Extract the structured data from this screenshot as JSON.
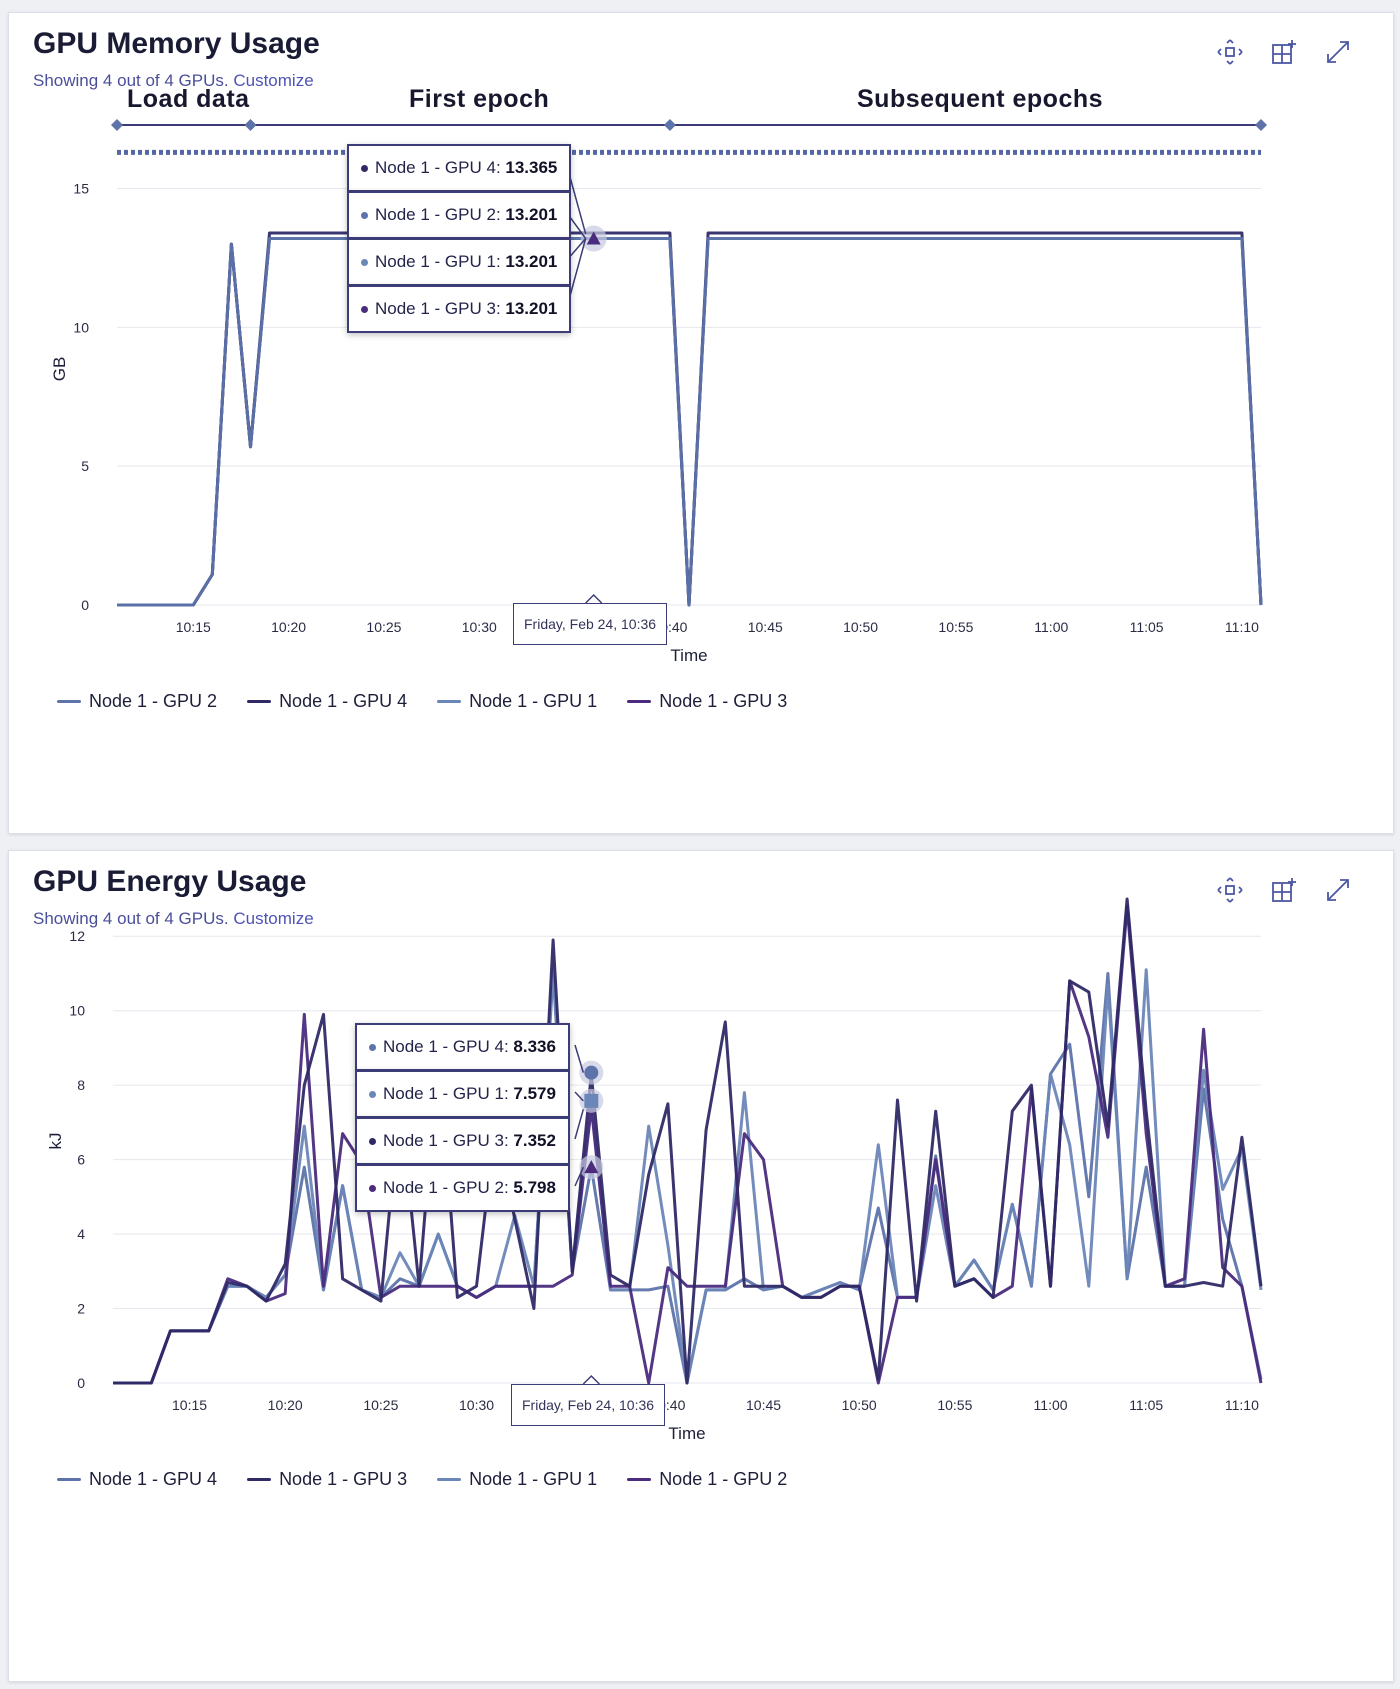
{
  "memory_panel": {
    "title": "GPU Memory Usage",
    "subtitle_prefix": "Showing 4 out of 4 GPUs.",
    "subtitle_link": "Customize",
    "phases": [
      "Load data",
      "First epoch",
      "Subsequent epochs"
    ],
    "tooltip_time": "Friday, Feb 24, 10:36",
    "tooltip_entries": [
      {
        "label": "Node 1 - GPU 4: ",
        "value": "13.365"
      },
      {
        "label": "Node 1 - GPU 2: ",
        "value": "13.201"
      },
      {
        "label": "Node 1 - GPU 1: ",
        "value": "13.201"
      },
      {
        "label": "Node 1 - GPU 3: ",
        "value": "13.201"
      }
    ],
    "legend": [
      "Node 1 - GPU 2",
      "Node 1 - GPU 4",
      "Node 1 - GPU 1",
      "Node 1 - GPU 3"
    ]
  },
  "energy_panel": {
    "title": "GPU Energy Usage",
    "subtitle_prefix": "Showing 4 out of 4 GPUs.",
    "subtitle_link": "Customize",
    "tooltip_time": "Friday, Feb 24, 10:36",
    "tooltip_entries": [
      {
        "label": "Node 1 - GPU 4: ",
        "value": "8.336"
      },
      {
        "label": "Node 1 - GPU 1: ",
        "value": "7.579"
      },
      {
        "label": "Node 1 - GPU 3: ",
        "value": "7.352"
      },
      {
        "label": "Node 1 - GPU 2: ",
        "value": "5.798"
      }
    ],
    "legend": [
      "Node 1 - GPU 4",
      "Node 1 - GPU 3",
      "Node 1 - GPU 1",
      "Node 1 - GPU 2"
    ]
  },
  "toolbar_icons": [
    "move-icon",
    "add-panel-icon",
    "expand-icon"
  ],
  "colors": {
    "gpu1": "#6b86b8",
    "gpu2": "#5d73aa",
    "gpu3": "#4a2b7d",
    "gpu4": "#2f2a66",
    "grid": "#e6e7ee",
    "timeline": "#3d3a78",
    "capacity": "#5567a6"
  },
  "chart_data": [
    {
      "type": "line",
      "title": "GPU Memory Usage",
      "xlabel": "Time",
      "ylabel": "GB",
      "xlim": [
        "10:11",
        "11:11"
      ],
      "ylim": [
        0,
        17
      ],
      "x_ticks": [
        "10:15",
        "10:20",
        "10:25",
        "10:30",
        "10:35",
        "10:40",
        "10:45",
        "10:50",
        "10:55",
        "11:00",
        "11:05",
        "11:10"
      ],
      "y_ticks": [
        0,
        5,
        10,
        15
      ],
      "grid": true,
      "legend_position": "bottom-left",
      "reference_line": 16.3,
      "phase_boundaries": [
        "10:11",
        "10:18",
        "10:40",
        "11:11"
      ],
      "series": [
        {
          "name": "Node 1 - GPU 2",
          "x": [
            "10:11",
            "10:15",
            "10:16",
            "10:17",
            "10:18",
            "10:19",
            "10:20",
            "10:40",
            "10:41",
            "10:42",
            "11:10",
            "11:11"
          ],
          "y": [
            0,
            0,
            1.1,
            13,
            5.7,
            13.2,
            13.2,
            13.2,
            0,
            13.2,
            13.2,
            0
          ]
        },
        {
          "name": "Node 1 - GPU 4",
          "x": [
            "10:11",
            "10:15",
            "10:16",
            "10:17",
            "10:18",
            "10:19",
            "10:20",
            "10:40",
            "10:41",
            "10:42",
            "11:10",
            "11:11"
          ],
          "y": [
            0,
            0,
            1.1,
            13,
            5.7,
            13.4,
            13.4,
            13.4,
            0,
            13.4,
            13.4,
            0
          ]
        },
        {
          "name": "Node 1 - GPU 1",
          "x": [
            "10:11",
            "10:15",
            "10:16",
            "10:17",
            "10:18",
            "10:19",
            "10:20",
            "10:40",
            "10:41",
            "10:42",
            "11:10",
            "11:11"
          ],
          "y": [
            0,
            0,
            1.1,
            13,
            5.7,
            13.2,
            13.2,
            13.2,
            0,
            13.2,
            13.2,
            0
          ]
        },
        {
          "name": "Node 1 - GPU 3",
          "x": [
            "10:11",
            "10:15",
            "10:16",
            "10:17",
            "10:18",
            "10:19",
            "10:20",
            "10:40",
            "10:41",
            "10:42",
            "11:10",
            "11:11"
          ],
          "y": [
            0,
            0,
            1.1,
            13,
            5.7,
            13.2,
            13.2,
            13.2,
            0,
            13.2,
            13.2,
            0
          ]
        }
      ]
    },
    {
      "type": "line",
      "title": "GPU Energy Usage",
      "xlabel": "Time",
      "ylabel": "kJ",
      "xlim": [
        "10:11",
        "11:11"
      ],
      "ylim": [
        0,
        13
      ],
      "x_ticks": [
        "10:15",
        "10:20",
        "10:25",
        "10:30",
        "10:35",
        "10:40",
        "10:45",
        "10:50",
        "10:55",
        "11:00",
        "11:05",
        "11:10"
      ],
      "y_ticks": [
        0,
        2,
        4,
        6,
        8,
        10,
        12
      ],
      "grid": true,
      "legend_position": "bottom-left",
      "x": [
        "10:11",
        "10:12",
        "10:13",
        "10:14",
        "10:15",
        "10:16",
        "10:17",
        "10:18",
        "10:19",
        "10:20",
        "10:21",
        "10:22",
        "10:23",
        "10:24",
        "10:25",
        "10:26",
        "10:27",
        "10:28",
        "10:29",
        "10:30",
        "10:31",
        "10:32",
        "10:33",
        "10:34",
        "10:35",
        "10:36",
        "10:37",
        "10:38",
        "10:39",
        "10:40",
        "10:41",
        "10:42",
        "10:43",
        "10:44",
        "10:45",
        "10:46",
        "10:47",
        "10:48",
        "10:49",
        "10:50",
        "10:51",
        "10:52",
        "10:53",
        "10:54",
        "10:55",
        "10:56",
        "10:57",
        "10:58",
        "10:59",
        "11:00",
        "11:01",
        "11:02",
        "11:03",
        "11:04",
        "11:05",
        "11:06",
        "11:07",
        "11:08",
        "11:09",
        "11:10",
        "11:11"
      ],
      "series": [
        {
          "name": "Node 1 - GPU 4",
          "y": [
            0,
            0,
            0,
            1.4,
            1.4,
            1.4,
            2.7,
            2.6,
            2.2,
            3.2,
            8.0,
            9.9,
            2.8,
            2.5,
            2.2,
            7.6,
            2.6,
            9.0,
            2.3,
            2.6,
            7.0,
            4.4,
            2.0,
            11.9,
            3.0,
            8.3,
            2.9,
            2.6,
            5.6,
            7.5,
            0,
            6.8,
            9.7,
            2.6,
            2.6,
            2.6,
            2.3,
            2.3,
            2.6,
            2.6,
            0.1,
            7.6,
            2.2,
            7.3,
            2.6,
            2.8,
            2.3,
            7.3,
            8.0,
            2.6,
            10.8,
            10.5,
            6.9,
            13.0,
            7.3,
            2.6,
            2.6,
            2.7,
            2.6,
            6.6,
            2.6
          ]
        },
        {
          "name": "Node 1 - GPU 3",
          "y": [
            0,
            0,
            0,
            1.4,
            1.4,
            1.4,
            2.8,
            2.6,
            2.2,
            2.4,
            9.9,
            2.6,
            6.7,
            5.9,
            2.3,
            2.6,
            2.6,
            2.6,
            2.6,
            2.3,
            2.6,
            2.6,
            2.6,
            2.6,
            2.9,
            7.4,
            2.6,
            2.6,
            0,
            3.1,
            2.6,
            2.6,
            2.6,
            6.7,
            6.0,
            2.6,
            2.3,
            2.3,
            2.6,
            2.6,
            0,
            2.3,
            2.3,
            6.0,
            2.6,
            2.8,
            2.3,
            2.6,
            7.9,
            2.6,
            10.8,
            9.3,
            6.6,
            12.8,
            6.7,
            2.6,
            2.8,
            9.5,
            3.1,
            2.6,
            0
          ]
        },
        {
          "name": "Node 1 - GPU 1",
          "y": [
            0,
            0,
            0,
            1.4,
            1.4,
            1.4,
            2.6,
            2.6,
            2.3,
            2.9,
            6.9,
            2.5,
            5.3,
            2.5,
            2.3,
            3.5,
            2.6,
            4.0,
            2.6,
            2.3,
            2.6,
            4.5,
            2.6,
            11.1,
            3.0,
            7.6,
            2.5,
            2.5,
            6.9,
            3.7,
            0,
            2.5,
            2.5,
            7.8,
            2.5,
            2.6,
            2.3,
            2.5,
            2.7,
            2.5,
            6.4,
            2.3,
            2.3,
            5.3,
            2.6,
            3.3,
            2.5,
            4.8,
            2.6,
            8.3,
            6.4,
            2.6,
            10.7,
            2.8,
            11.1,
            2.6,
            2.6,
            8.4,
            5.2,
            6.3,
            2.5
          ]
        },
        {
          "name": "Node 1 - GPU 2",
          "y": [
            0,
            0,
            0,
            1.4,
            1.4,
            1.4,
            2.6,
            2.6,
            2.3,
            2.9,
            5.8,
            2.5,
            5.3,
            2.5,
            2.3,
            2.8,
            2.6,
            4.0,
            2.6,
            2.3,
            2.6,
            2.6,
            2.6,
            11.0,
            3.0,
            5.8,
            2.5,
            2.5,
            2.5,
            2.6,
            0,
            2.5,
            2.5,
            2.8,
            2.5,
            2.6,
            2.3,
            2.5,
            2.7,
            2.5,
            4.7,
            2.3,
            2.3,
            6.1,
            2.6,
            3.3,
            2.5,
            4.8,
            2.6,
            8.3,
            9.1,
            5.0,
            11.0,
            2.8,
            5.8,
            2.6,
            2.6,
            7.9,
            4.4,
            2.6,
            0.1
          ]
        }
      ]
    }
  ]
}
